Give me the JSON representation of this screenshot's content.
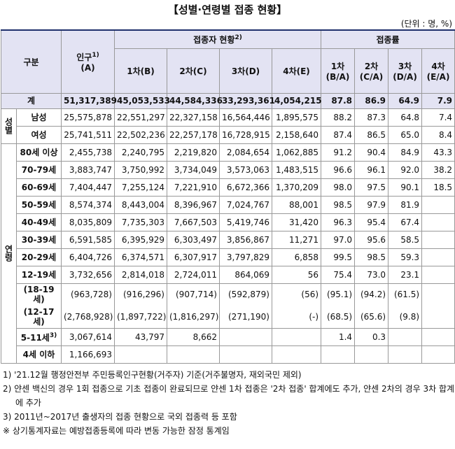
{
  "title": "【성별·연령별 접종 현황】",
  "unit": "(단위 : 명, %)",
  "header": {
    "category": "구분",
    "population": {
      "label": "인구",
      "note": "1)",
      "code": "(A)"
    },
    "vaccinated": {
      "label": "접종자 현황",
      "note": "2)",
      "columns": [
        "1차(B)",
        "2차(C)",
        "3차(D)",
        "4차(E)"
      ]
    },
    "rate": {
      "label": "접종률",
      "columns": [
        {
          "label": "1차",
          "code": "(B/A)"
        },
        {
          "label": "2차",
          "code": "(C/A)"
        },
        {
          "label": "3차",
          "code": "(D/A)"
        },
        {
          "label": "4차",
          "code": "(E/A)"
        }
      ]
    }
  },
  "total": {
    "label": "계",
    "cells": [
      "51,317,389",
      "45,053,533",
      "44,584,336",
      "33,293,361",
      "4,054,215",
      "87.8",
      "86.9",
      "64.9",
      "7.9"
    ]
  },
  "groups": [
    {
      "label": "성별",
      "rows": [
        {
          "label": "남성",
          "cells": [
            "25,575,878",
            "22,551,297",
            "22,327,158",
            "16,564,446",
            "1,895,575",
            "88.2",
            "87.3",
            "64.8",
            "7.4"
          ]
        },
        {
          "label": "여성",
          "cells": [
            "25,741,511",
            "22,502,236",
            "22,257,178",
            "16,728,915",
            "2,158,640",
            "87.4",
            "86.5",
            "65.0",
            "8.4"
          ]
        }
      ]
    },
    {
      "label": "연령",
      "rows": [
        {
          "label": "80세 이상",
          "cells": [
            "2,455,738",
            "2,240,795",
            "2,219,820",
            "2,084,654",
            "1,062,885",
            "91.2",
            "90.4",
            "84.9",
            "43.3"
          ]
        },
        {
          "label": "70-79세",
          "cells": [
            "3,883,747",
            "3,750,992",
            "3,734,049",
            "3,573,063",
            "1,483,515",
            "96.6",
            "96.1",
            "92.0",
            "38.2"
          ]
        },
        {
          "label": "60-69세",
          "cells": [
            "7,404,447",
            "7,255,124",
            "7,221,910",
            "6,672,366",
            "1,370,209",
            "98.0",
            "97.5",
            "90.1",
            "18.5"
          ]
        },
        {
          "label": "50-59세",
          "cells": [
            "8,574,374",
            "8,443,004",
            "8,396,967",
            "7,024,767",
            "88,001",
            "98.5",
            "97.9",
            "81.9",
            null
          ]
        },
        {
          "label": "40-49세",
          "cells": [
            "8,035,809",
            "7,735,303",
            "7,667,503",
            "5,419,746",
            "31,420",
            "96.3",
            "95.4",
            "67.4",
            null
          ]
        },
        {
          "label": "30-39세",
          "cells": [
            "6,591,585",
            "6,395,929",
            "6,303,497",
            "3,856,867",
            "11,271",
            "97.0",
            "95.6",
            "58.5",
            null
          ]
        },
        {
          "label": "20-29세",
          "cells": [
            "6,404,726",
            "6,374,571",
            "6,307,917",
            "3,797,829",
            "6,858",
            "99.5",
            "98.5",
            "59.3",
            null
          ]
        },
        {
          "label": "12-19세",
          "cells": [
            "3,732,656",
            "2,814,018",
            "2,724,011",
            "864,069",
            "56",
            "75.4",
            "73.0",
            "23.1",
            null
          ]
        },
        {
          "label": "(18-19세)",
          "cells": [
            "(963,728)",
            "(916,296)",
            "(907,714)",
            "(592,879)",
            "(56)",
            "(95.1)",
            "(94.2)",
            "(61.5)",
            null
          ]
        },
        {
          "label": "(12-17세)",
          "cells": [
            "(2,768,928)",
            "(1,897,722)",
            "(1,816,297)",
            "(271,190)",
            "(-)",
            "(68.5)",
            "(65.6)",
            "(9.8)",
            null
          ]
        },
        {
          "label": "5-11세",
          "note": "3)",
          "cells": [
            "3,067,614",
            "43,797",
            "8,662",
            null,
            null,
            "1.4",
            "0.3",
            null,
            null
          ]
        },
        {
          "label": "4세 이하",
          "cells": [
            "1,166,693",
            null,
            null,
            null,
            null,
            null,
            null,
            null,
            null
          ]
        }
      ]
    }
  ],
  "notes": [
    "1) '21.12월 행정안전부 주민등록인구현황(거주자) 기준(거주불명자, 재외국민 제외)",
    "2) 얀센 백신의 경우 1회 접종으로 기초 접종이 완료되므로 얀센 1차 접종은 '2차 접종' 합계에도 추가, 얀센 2차의 경우 3차 합계에 추가",
    "3) 2011년~2017년 출생자의 접종 현황으로 국외 접종력 등 포함",
    "※ 상기통계자료는 예방접종등록에 따라 변동 가능한 잠정 통계임"
  ]
}
